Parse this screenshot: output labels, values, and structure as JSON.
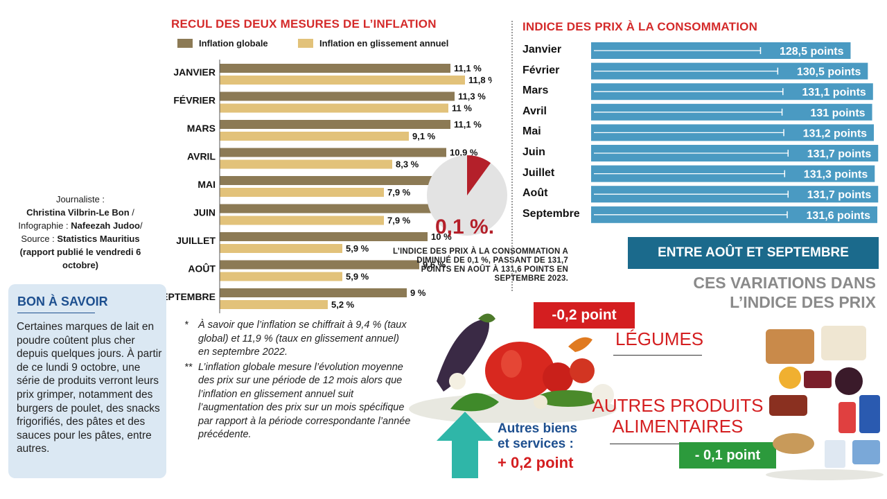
{
  "left_chart": {
    "title": "RECUL DES DEUX MESURES DE L’INFLATION",
    "legend": [
      {
        "label": "Inflation globale",
        "color": "#8c7a55"
      },
      {
        "label": "Inflation en glissement annuel",
        "color": "#e2c27a"
      }
    ]
  },
  "credits": {
    "line1": "Journaliste :",
    "journalist": "Christina Vilbrin-Le Bon",
    "sep1": " /",
    "infographie_label": "Infographie : ",
    "infographist": "Nafeezah Judoo",
    "sep2": "/",
    "source_label": "Source : ",
    "source": "Statistics Mauritius",
    "report": "(rapport publié le vendredi 6 octobre)"
  },
  "bon_a_savoir": {
    "title": "BON À SAVOIR",
    "text": "Certaines marques de lait en poudre coûtent plus cher depuis quelques jours. À partir de ce lundi 9 octobre, une série de produits verront leurs prix grimper, notamment des burgers de poulet, des snacks frigorifiés, des pâtes et des sauces pour les pâtes, entre autres."
  },
  "notes": {
    "star1": "*",
    "note1": "À savoir que l’inflation se chiffrait à 9,4 % (taux global) et 11,9 % (taux en glissement annuel) en septembre 2022.",
    "star2": "**",
    "note2": "L’inflation globale mesure l’évolution moyenne des prix sur une période de 12 mois alors que l’inflation en glissement annuel suit l’augmentation des prix sur un mois spécifique par rapport à la période correspondante l’année précédente."
  },
  "pie": {
    "percent": "0,1 %.",
    "text": "L’INDICE DES PRIX À LA CONSOMMATION A DIMINUÉ DE 0,1 %, PASSANT DE 131,7 POINTS EN AOÛT À 131,6 POINTS EN SEPTEMBRE 2023.",
    "slice_color": "#b4202a",
    "rest_color": "#e3e3e3"
  },
  "right_chart": {
    "title": "INDICE DES PRIX À LA CONSOMMATION",
    "bar_color": "#4a9ac2"
  },
  "variations": {
    "banner": "ENTRE AOÛT ET SEPTEMBRE",
    "heading_line1": "CES VARIATIONS DANS",
    "heading_line2": "L’INDICE DES PRIX",
    "legumes_badge": "-0,2 point",
    "legumes": "LÉGUMES",
    "autres_line1": "AUTRES PRODUITS",
    "autres_line2": "ALIMENTAIRES",
    "autres_badge": "- 0,1 point",
    "biens_line1": "Autres biens",
    "biens_line2": "et services :",
    "biens_value": "+ 0,2 point"
  },
  "chart_data": [
    {
      "type": "bar",
      "orientation": "horizontal",
      "title": "RECUL DES DEUX MESURES DE L’INFLATION",
      "categories": [
        "JANVIER",
        "FÉVRIER",
        "MARS",
        "AVRIL",
        "MAI",
        "JUIN",
        "JUILLET",
        "AOÛT",
        "SEPTEMBRE"
      ],
      "series": [
        {
          "name": "Inflation globale",
          "values": [
            11.1,
            11.3,
            11.1,
            10.9,
            10.6,
            10.5,
            10,
            9.6,
            9
          ],
          "labels": [
            "11,1 %",
            "11,3 %",
            "11,1 %",
            "10,9 %",
            "10,6 %",
            "10,5 %",
            "10 %",
            "9,6 %",
            "9 %"
          ]
        },
        {
          "name": "Inflation en glissement annuel",
          "values": [
            11.8,
            11,
            9.1,
            8.3,
            7.9,
            7.9,
            5.9,
            5.9,
            5.2
          ],
          "labels": [
            "11,8 %",
            "11 %",
            "9,1 %",
            "8,3 %",
            "7,9 %",
            "7,9 %",
            "5,9 %",
            "5,9 %",
            "5,2 %"
          ]
        }
      ],
      "xlim": [
        0,
        12
      ]
    },
    {
      "type": "bar",
      "orientation": "horizontal",
      "title": "INDICE DES PRIX À LA CONSOMMATION",
      "categories": [
        "Janvier",
        "Février",
        "Mars",
        "Avril",
        "Mai",
        "Juin",
        "Juillet",
        "Août",
        "Septembre"
      ],
      "values": [
        128.5,
        130.5,
        131.1,
        131,
        131.2,
        131.7,
        131.3,
        131.7,
        131.6
      ],
      "labels": [
        "128,5 points",
        "130,5 points",
        "131,1 points",
        "131 points",
        "131,2 points",
        "131,7 points",
        "131,3 points",
        "131,7 points",
        "131,6 points"
      ],
      "xlim": [
        100,
        132
      ]
    },
    {
      "type": "pie",
      "categories": [
        "Diminution",
        "Reste"
      ],
      "values": [
        0.1,
        0.9
      ]
    }
  ]
}
